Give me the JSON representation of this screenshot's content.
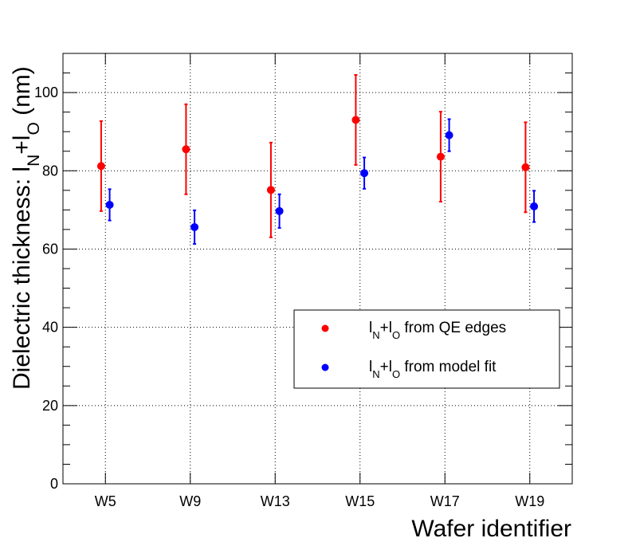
{
  "chart_data": {
    "type": "scatter",
    "title": "",
    "xlabel": "Wafer identifier",
    "ylabel": {
      "prefix": "Dielectric thickness: ",
      "formula": [
        {
          "text": "l"
        },
        {
          "text": "N",
          "sub": true
        },
        {
          "text": "+l"
        },
        {
          "text": "O",
          "sub": true
        },
        {
          "text": " (nm)"
        }
      ]
    },
    "categories": [
      "W5",
      "W9",
      "W13",
      "W15",
      "W17",
      "W19"
    ],
    "ylim": [
      0,
      110
    ],
    "yticks": [
      0,
      20,
      40,
      60,
      80,
      100
    ],
    "yticks_labels": [
      "0",
      "20",
      "40",
      "60",
      "80",
      "100"
    ],
    "grid": true,
    "legend_position": "lower-right",
    "series": [
      {
        "name": "QE edges",
        "legend": [
          {
            "text": "l"
          },
          {
            "text": "N",
            "sub": true
          },
          {
            "text": "+l"
          },
          {
            "text": "O",
            "sub": true
          },
          {
            "text": " from QE edges"
          }
        ],
        "color": "#ff0000",
        "values": [
          81.2,
          85.5,
          75.1,
          93.0,
          83.6,
          80.9
        ],
        "errors": [
          11.5,
          11.5,
          12.1,
          11.5,
          11.5,
          11.5
        ],
        "offset": -0.05
      },
      {
        "name": "model fit",
        "legend": [
          {
            "text": "l"
          },
          {
            "text": "N",
            "sub": true
          },
          {
            "text": "+l"
          },
          {
            "text": "O",
            "sub": true
          },
          {
            "text": " from model fit"
          }
        ],
        "color": "#0000ff",
        "values": [
          71.3,
          65.6,
          69.7,
          79.4,
          89.1,
          70.9
        ],
        "errors": [
          4.0,
          4.3,
          4.3,
          4.0,
          4.1,
          4.0
        ],
        "offset": 0.05
      }
    ]
  }
}
